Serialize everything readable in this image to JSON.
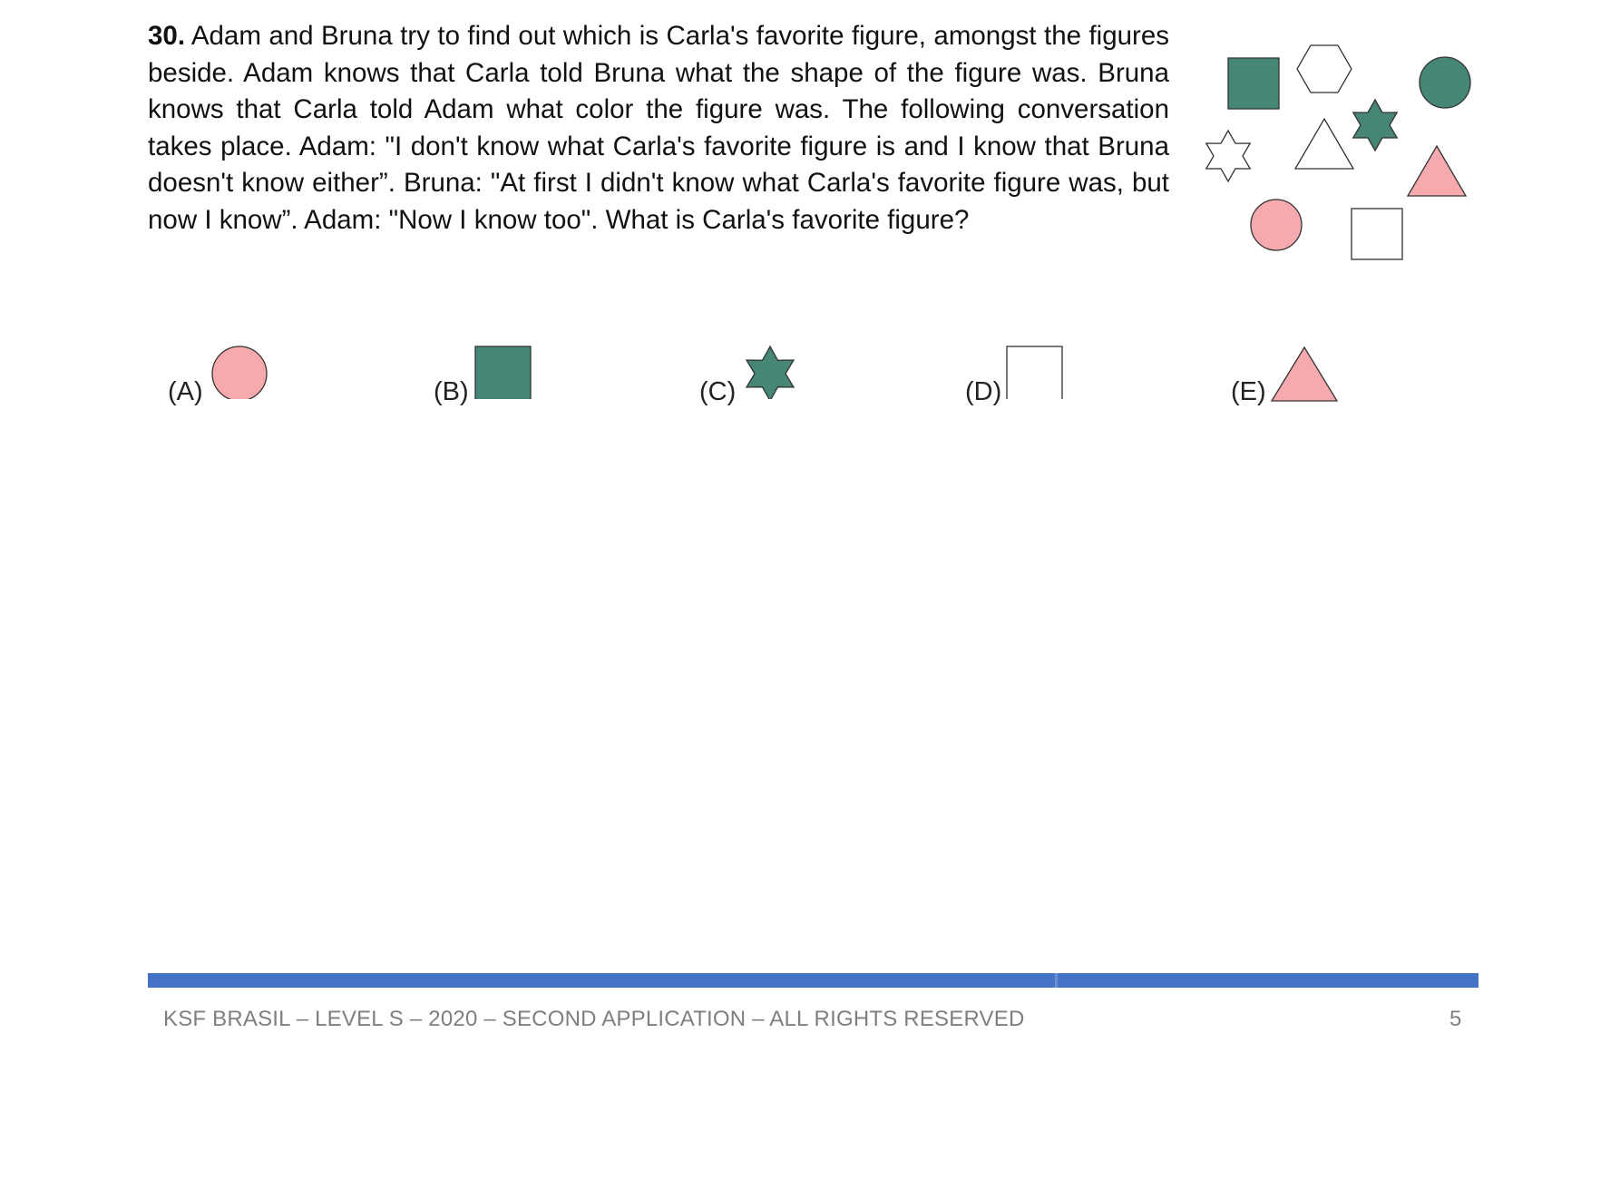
{
  "question": {
    "number": "30.",
    "text": "Adam and Bruna try to find out which is Carla's favorite figure, amongst the figures beside. Adam knows that Carla told Bruna what the shape of the figure was. Bruna knows that Carla told Adam what color the figure was. The following conversation takes place. Adam: \"I don't know what Carla's favorite figure is and I know that Bruna doesn't know either”. Bruna: \"At first I didn't know what Carla's favorite figure was, but now I know”. Adam: \"Now I know too\". What is Carla's favorite figure?"
  },
  "colors": {
    "green": "#468676",
    "pink": "#f6aaad",
    "white": "#ffffff",
    "stroke": "#333333",
    "footer_rule": "#4472c4"
  },
  "figures": [
    {
      "shape": "square",
      "color": "green"
    },
    {
      "shape": "hexagon",
      "color": "white"
    },
    {
      "shape": "circle",
      "color": "green"
    },
    {
      "shape": "star",
      "color": "white"
    },
    {
      "shape": "triangle",
      "color": "white"
    },
    {
      "shape": "star",
      "color": "green"
    },
    {
      "shape": "triangle",
      "color": "pink"
    },
    {
      "shape": "circle",
      "color": "pink"
    },
    {
      "shape": "square",
      "color": "white"
    }
  ],
  "options": [
    {
      "label": "(A)",
      "shape": "circle",
      "color": "pink"
    },
    {
      "label": "(B)",
      "shape": "square",
      "color": "green"
    },
    {
      "label": "(C)",
      "shape": "star",
      "color": "green"
    },
    {
      "label": "(D)",
      "shape": "square",
      "color": "white"
    },
    {
      "label": "(E)",
      "shape": "triangle",
      "color": "pink"
    }
  ],
  "footer": {
    "text": "KSF BRASIL – LEVEL S – 2020 – SECOND APPLICATION – ALL RIGHTS RESERVED",
    "page": "5"
  }
}
